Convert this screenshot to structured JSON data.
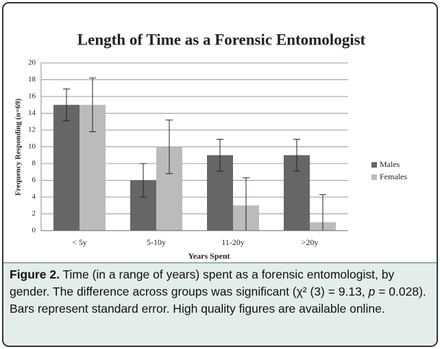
{
  "chart_data": {
    "type": "bar",
    "title": "Length of Time as a Forensic Entomologist",
    "x_label": "Years Spent",
    "y_label": "Frequency Responding (n=69)",
    "categories": [
      "< 5y",
      "5-10y",
      "11-20y",
      ">20y"
    ],
    "series": [
      {
        "name": "Males",
        "color": "#666666",
        "values": [
          15,
          6,
          9,
          9
        ],
        "errors": [
          1.9,
          2,
          1.9,
          1.9
        ]
      },
      {
        "name": "Females",
        "color": "#bbbbbb",
        "values": [
          15,
          10,
          3,
          1
        ],
        "errors": [
          3.2,
          3.2,
          3.3,
          3.3
        ]
      }
    ],
    "ylim": [
      0,
      20
    ],
    "yticks": [
      0,
      2,
      4,
      6,
      8,
      10,
      12,
      14,
      16,
      18,
      20
    ],
    "grid": true,
    "legend": "right"
  },
  "caption": {
    "label": "Figure 2.",
    "text_1": " Time (in a range of years) spent as a forensic entomologist, by gender. The difference across groups was significant (χ² (3) = 9.13, ",
    "italic": "p",
    "text_2": " = 0.028). Bars represent standard error. High quality figures are available online."
  }
}
